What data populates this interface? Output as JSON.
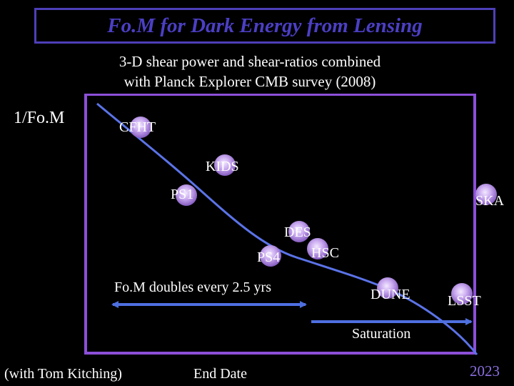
{
  "slide": {
    "title": "Fo.M for Dark Energy from Lensing",
    "subtitle_line1": "3-D shear power and shear-ratios combined",
    "subtitle_line2": "with Planck Explorer CMB survey (2008)",
    "y_axis_label": "1/Fo.M",
    "surveys": [
      "CFHT",
      "KIDS",
      "PS1",
      "SKA",
      "DES",
      "PS4",
      "HSC",
      "DUNE",
      "LSST"
    ],
    "annotation_doubling": "Fo.M doubles every 2.5 yrs",
    "annotation_saturation": "Saturation",
    "credit": "(with Tom Kitching)",
    "x_axis_label": "End Date",
    "year_label": "2023"
  },
  "colors": {
    "background": "#000000",
    "title": "#4b3fc4",
    "frame": "#8c4fd8",
    "curve": "#5b73e8",
    "arrow": "#4e6fe0"
  }
}
